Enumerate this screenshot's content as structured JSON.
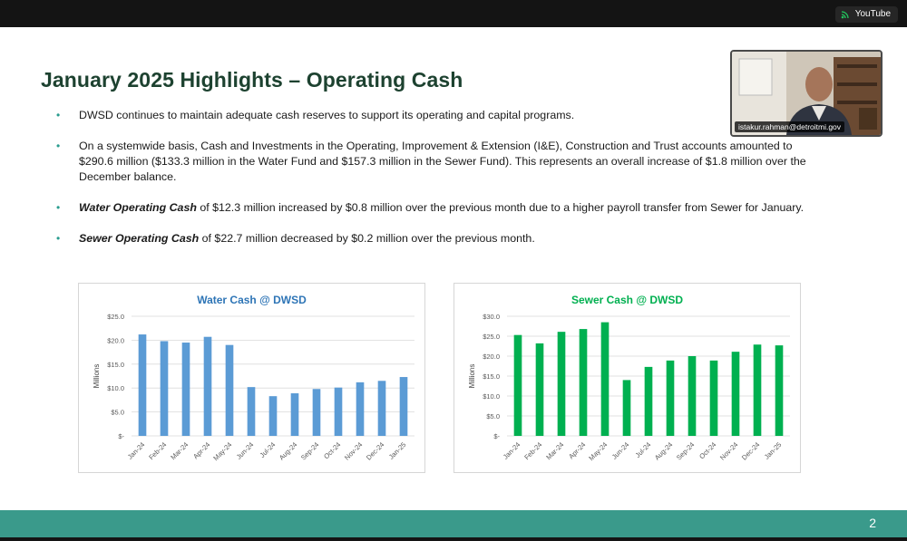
{
  "topbar": {
    "youtube_label": "YouTube"
  },
  "slide": {
    "title": "January 2025 Highlights – Operating Cash",
    "bullet1": "DWSD continues to maintain adequate cash reserves to support its operating and capital programs.",
    "bullet2": "On a systemwide basis, Cash and Investments in the Operating, Improvement & Extension (I&E), Construction and Trust accounts amounted to $290.6 million ($133.3 million in the Water Fund and $157.3 million in the Sewer Fund). This represents an overall increase of $1.8 million over the December balance.",
    "bullet3_bold": "Water Operating Cash",
    "bullet3_text": " of $12.3 million increased by $0.8 million over the previous month due to a higher payroll transfer from Sewer for January.",
    "bullet4_bold": "Sewer Operating Cash",
    "bullet4_text": " of $22.7 million decreased by $0.2 million over the previous month.",
    "page_number": "2"
  },
  "participant": {
    "name": "istakur.rahman@detroitmi.gov"
  },
  "chart_data": [
    {
      "type": "bar",
      "title": "Water Cash @ DWSD",
      "ylabel": "Millions",
      "categories": [
        "Jan-24",
        "Feb-24",
        "Mar-24",
        "Apr-24",
        "May-24",
        "Jun-24",
        "Jul-24",
        "Aug-24",
        "Sep-24",
        "Oct-24",
        "Nov-24",
        "Dec-24",
        "Jan-25"
      ],
      "values": [
        21.2,
        19.8,
        19.5,
        20.7,
        19.0,
        10.2,
        8.3,
        8.9,
        9.8,
        10.1,
        11.2,
        11.5,
        12.3
      ],
      "ylim": [
        0,
        25
      ],
      "yticks": [
        "$-",
        "$5.0",
        "$10.0",
        "$15.0",
        "$20.0",
        "$25.0"
      ],
      "color": "#5b9bd5",
      "title_color": "#2e75b6",
      "grid": true
    },
    {
      "type": "bar",
      "title": "Sewer Cash @ DWSD",
      "ylabel": "Millions",
      "categories": [
        "Jan-24",
        "Feb-24",
        "Mar-24",
        "Apr-24",
        "May-24",
        "Jun-24",
        "Jul-24",
        "Aug-24",
        "Sep-24",
        "Oct-24",
        "Nov-24",
        "Dec-24",
        "Jan-25"
      ],
      "values": [
        25.3,
        23.2,
        26.1,
        26.8,
        28.5,
        14.0,
        17.3,
        18.9,
        20.0,
        18.9,
        21.1,
        22.9,
        22.7
      ],
      "ylim": [
        0,
        30
      ],
      "yticks": [
        "$-",
        "$5.0",
        "$10.0",
        "$15.0",
        "$20.0",
        "$25.0",
        "$30.0"
      ],
      "color": "#00b050",
      "title_color": "#00b050",
      "grid": true
    }
  ]
}
